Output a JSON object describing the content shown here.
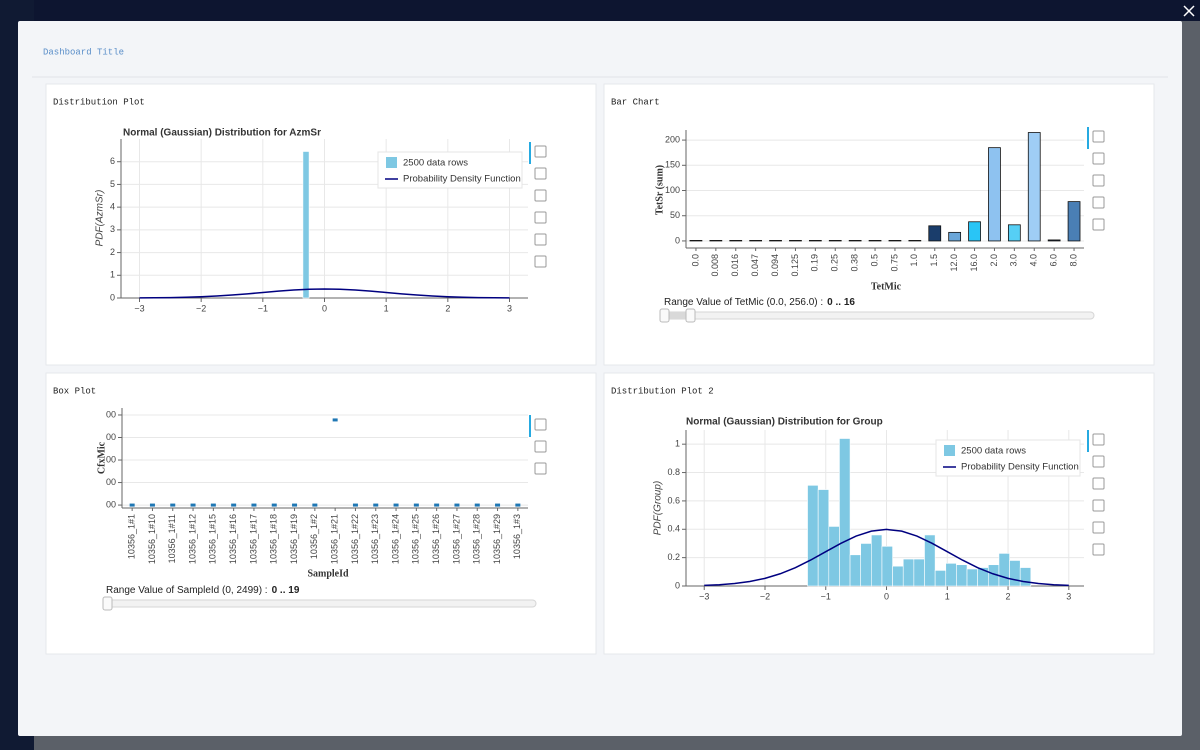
{
  "dashboard": {
    "title": "Dashboard Title"
  },
  "chart_data": [
    {
      "type": "histogram",
      "panel_title": "Distribution Plot",
      "title": "Normal (Gaussian) Distribution for AzmSr",
      "y_label": "PDF(AzmSr)",
      "series": [
        {
          "name": "2500 data rows",
          "color": "#7ec8e3",
          "bins": [
            -0.35,
            -0.25
          ],
          "values": [
            6.45
          ]
        },
        {
          "name": "Probability Density Function",
          "color": "#000080",
          "x": [
            -3,
            -2.75,
            -2.5,
            -2.25,
            -2,
            -1.75,
            -1.5,
            -1.25,
            -1,
            -0.75,
            -0.5,
            -0.25,
            0,
            0.25,
            0.5,
            0.75,
            1,
            1.25,
            1.5,
            1.75,
            2,
            2.25,
            2.5,
            2.75,
            3
          ],
          "values": [
            0.0044,
            0.0091,
            0.0175,
            0.0317,
            0.054,
            0.0863,
            0.1295,
            0.1826,
            0.242,
            0.3011,
            0.3521,
            0.3867,
            0.3989,
            0.3867,
            0.3521,
            0.3011,
            0.242,
            0.1826,
            0.1295,
            0.0863,
            0.054,
            0.0317,
            0.0175,
            0.0091,
            0.0044
          ]
        }
      ],
      "xlim": [
        -3.3,
        3.3
      ],
      "ylim": [
        0,
        7
      ],
      "xticks": [
        {
          "value": -3,
          "label": "−3"
        },
        {
          "value": -2,
          "label": "−2"
        },
        {
          "value": -1,
          "label": "−1"
        },
        0,
        1,
        2,
        3
      ],
      "yticks": [
        0,
        1,
        2,
        3,
        4,
        5,
        6
      ],
      "grid": true,
      "legend": "top-right"
    },
    {
      "type": "bar",
      "panel_title": "Bar Chart",
      "y_label": "TetSr (sum)",
      "x_label": "TetMic",
      "categories": [
        "0.0",
        "0.008",
        "0.016",
        "0.047",
        "0.094",
        "0.125",
        "0.19",
        "0.25",
        "0.38",
        "0.5",
        "0.75",
        "1.0",
        "1.5",
        "12.0",
        "16.0",
        "2.0",
        "3.0",
        "4.0",
        "6.0",
        "8.0"
      ],
      "values": [
        1,
        1,
        1,
        1,
        1,
        1,
        1,
        1,
        1,
        1,
        1,
        1,
        30,
        17,
        38,
        185,
        32,
        215,
        2,
        78
      ],
      "colors": [
        "#203a5c",
        "#203a5c",
        "#203a5c",
        "#203a5c",
        "#203a5c",
        "#203a5c",
        "#203a5c",
        "#203a5c",
        "#203a5c",
        "#203a5c",
        "#203a5c",
        "#203a5c",
        "#1a3d6b",
        "#6aa6d9",
        "#29c5f6",
        "#8ec2f0",
        "#56cff5",
        "#9fcdf5",
        "#1a2d4a",
        "#4a7fb5"
      ],
      "ylim": [
        -14,
        220
      ],
      "yticks": [
        0,
        50,
        100,
        150,
        200
      ],
      "grid": true,
      "slider": {
        "label": "Range Value of TetMic (0.0, 256.0) :",
        "value": "0 .. 16"
      }
    },
    {
      "type": "dot",
      "panel_title": "Box Plot",
      "y_label": "CfxMic",
      "x_label": "SampleId",
      "categories": [
        "10356_1#1",
        "10356_1#10",
        "10356_1#11",
        "10356_1#12",
        "10356_1#15",
        "10356_1#16",
        "10356_1#17",
        "10356_1#18",
        "10356_1#19",
        "10356_1#2",
        "10356_1#21",
        "10356_1#22",
        "10356_1#23",
        "10356_1#24",
        "10356_1#25",
        "10356_1#26",
        "10356_1#27",
        "10356_1#28",
        "10356_1#29",
        "10356_1#3"
      ],
      "values": [
        0,
        0,
        0,
        0,
        0,
        0,
        0,
        0,
        0,
        0,
        378,
        0,
        0,
        0,
        0,
        0,
        0,
        0,
        0,
        0
      ],
      "color": "#1f77b4",
      "ylim": [
        -13,
        431
      ],
      "yticks": [
        {
          "value": 0,
          "label": "00"
        },
        {
          "value": 100,
          "label": "00"
        },
        {
          "value": 200,
          "label": "00"
        },
        {
          "value": 300,
          "label": "00"
        },
        {
          "value": 400,
          "label": "00"
        }
      ],
      "grid": true,
      "slider": {
        "label": "Range Value of SampleId (0, 2499) :",
        "value": "0 .. 19"
      }
    },
    {
      "type": "histogram",
      "panel_title": "Distribution Plot 2",
      "title": "Normal (Gaussian) Distribution for Group",
      "y_label": "PDF(Group)",
      "series": [
        {
          "name": "2500 data rows",
          "color": "#7ec8e3",
          "bins": [
            -1.3,
            -1.125,
            -0.95,
            -0.775,
            -0.6,
            -0.425,
            -0.25,
            -0.075,
            0.1,
            0.275,
            0.45,
            0.625,
            0.8,
            0.975,
            1.15,
            1.325,
            1.5,
            1.675,
            1.85,
            2.025,
            2.2,
            2.375
          ],
          "values": [
            0.71,
            0.68,
            0.42,
            1.04,
            0.22,
            0.3,
            0.36,
            0.28,
            0.14,
            0.19,
            0.19,
            0.36,
            0.11,
            0.16,
            0.15,
            0.12,
            0.13,
            0.15,
            0.23,
            0.18,
            0.13
          ]
        },
        {
          "name": "Probability Density Function",
          "color": "#000080",
          "x": [
            -3,
            -2.75,
            -2.5,
            -2.25,
            -2,
            -1.75,
            -1.5,
            -1.25,
            -1,
            -0.75,
            -0.5,
            -0.25,
            0,
            0.25,
            0.5,
            0.75,
            1,
            1.25,
            1.5,
            1.75,
            2,
            2.25,
            2.5,
            2.75,
            3
          ],
          "values": [
            0.0044,
            0.0091,
            0.0175,
            0.0317,
            0.054,
            0.0863,
            0.1295,
            0.1826,
            0.242,
            0.3011,
            0.3521,
            0.3867,
            0.3989,
            0.3867,
            0.3521,
            0.3011,
            0.242,
            0.1826,
            0.1295,
            0.0863,
            0.054,
            0.0317,
            0.0175,
            0.0091,
            0.0044
          ]
        }
      ],
      "xlim": [
        -3.3,
        3.25
      ],
      "ylim": [
        0,
        1.1
      ],
      "xticks": [
        {
          "value": -3,
          "label": "−3"
        },
        {
          "value": -2,
          "label": "−2"
        },
        {
          "value": -1,
          "label": "−1"
        },
        0,
        1,
        2,
        3
      ],
      "yticks": [
        0,
        0.2,
        0.4,
        0.6,
        0.8,
        1
      ],
      "grid": true,
      "legend": "top-right"
    }
  ]
}
